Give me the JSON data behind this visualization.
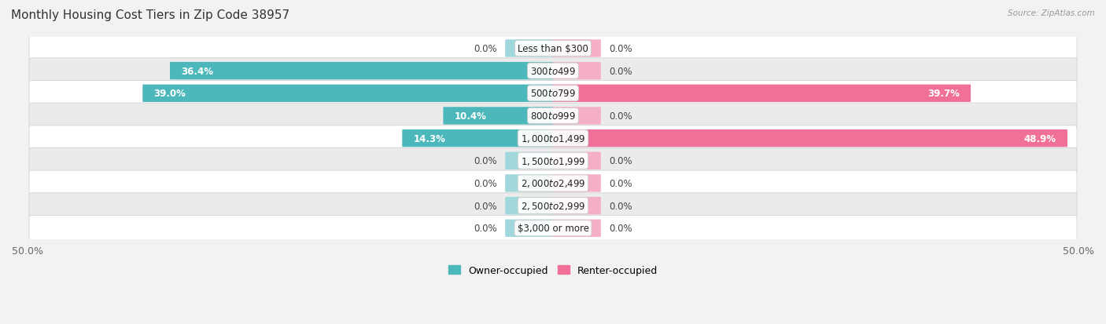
{
  "title": "Monthly Housing Cost Tiers in Zip Code 38957",
  "source": "Source: ZipAtlas.com",
  "categories": [
    "Less than $300",
    "$300 to $499",
    "$500 to $799",
    "$800 to $999",
    "$1,000 to $1,499",
    "$1,500 to $1,999",
    "$2,000 to $2,499",
    "$2,500 to $2,999",
    "$3,000 or more"
  ],
  "owner_values": [
    0.0,
    36.4,
    39.0,
    10.4,
    14.3,
    0.0,
    0.0,
    0.0,
    0.0
  ],
  "renter_values": [
    0.0,
    0.0,
    39.7,
    0.0,
    48.9,
    0.0,
    0.0,
    0.0,
    0.0
  ],
  "owner_color": "#4db8bc",
  "renter_color": "#f07098",
  "owner_color_light": "#a0d8dc",
  "renter_color_light": "#f4aec5",
  "axis_max": 50.0,
  "stub_size": 4.5,
  "background_color": "#f2f2f2",
  "row_bg_light": "#ffffff",
  "row_bg_dark": "#ebebeb",
  "title_fontsize": 11,
  "label_fontsize": 8.5,
  "tick_fontsize": 9,
  "val_label_fontsize": 8.5
}
